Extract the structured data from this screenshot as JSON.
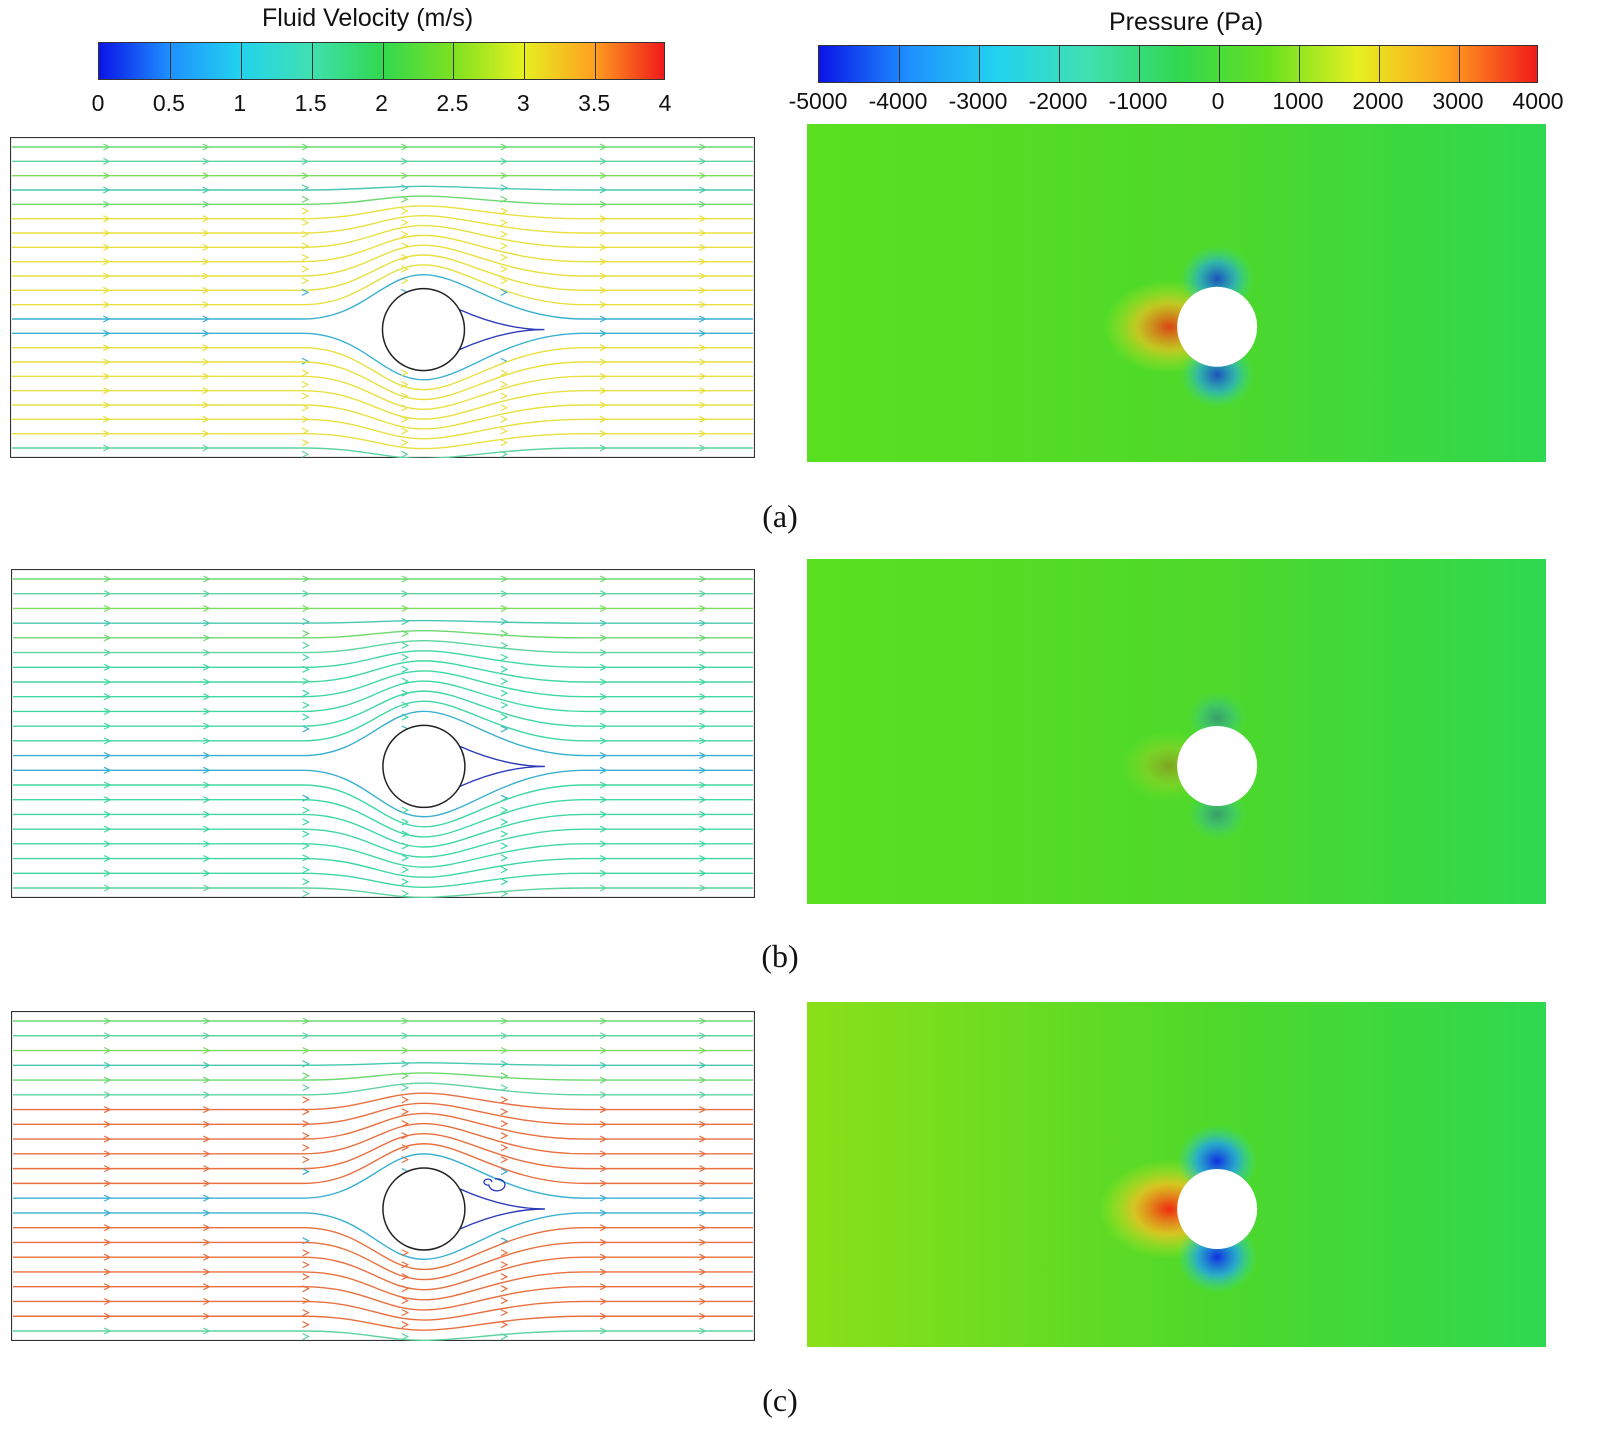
{
  "velocity_colorbar": {
    "title": "Fluid Velocity (m/s)",
    "min": 0,
    "max": 4,
    "ticks": [
      "0",
      "0.5",
      "1",
      "1.5",
      "2",
      "2.5",
      "3",
      "3.5",
      "4"
    ],
    "colors": [
      "#0a14e6",
      "#1e90ff",
      "#22d3ee",
      "#3fe0b0",
      "#30d850",
      "#7ce020",
      "#e6f020",
      "#ffa020",
      "#f01a1a"
    ]
  },
  "pressure_colorbar": {
    "title": "Pressure (Pa)",
    "min": -5000,
    "max": 4000,
    "ticks": [
      "-5000",
      "-4000",
      "-3000",
      "-2000",
      "-1000",
      "0",
      "1000",
      "2000",
      "3000",
      "4000"
    ],
    "colors": [
      "#0a14e6",
      "#1e90ff",
      "#22d3ee",
      "#3fe0b0",
      "#30d850",
      "#66e020",
      "#e6f020",
      "#ffa020",
      "#f01a1a"
    ]
  },
  "cases": [
    {
      "label": "(a)",
      "pressure_low_strength": 0.8,
      "pressure_high_strength": 0.85,
      "velocity_accent": "#e8e040",
      "background": "#5ae020"
    },
    {
      "label": "(b)",
      "pressure_low_strength": 0.35,
      "pressure_high_strength": 0.3,
      "velocity_accent": "#40d8a0",
      "background": "#5ae020"
    },
    {
      "label": "(c)",
      "pressure_low_strength": 1.0,
      "pressure_high_strength": 1.0,
      "velocity_accent": "#e87040",
      "background": "#8ae018"
    }
  ]
}
